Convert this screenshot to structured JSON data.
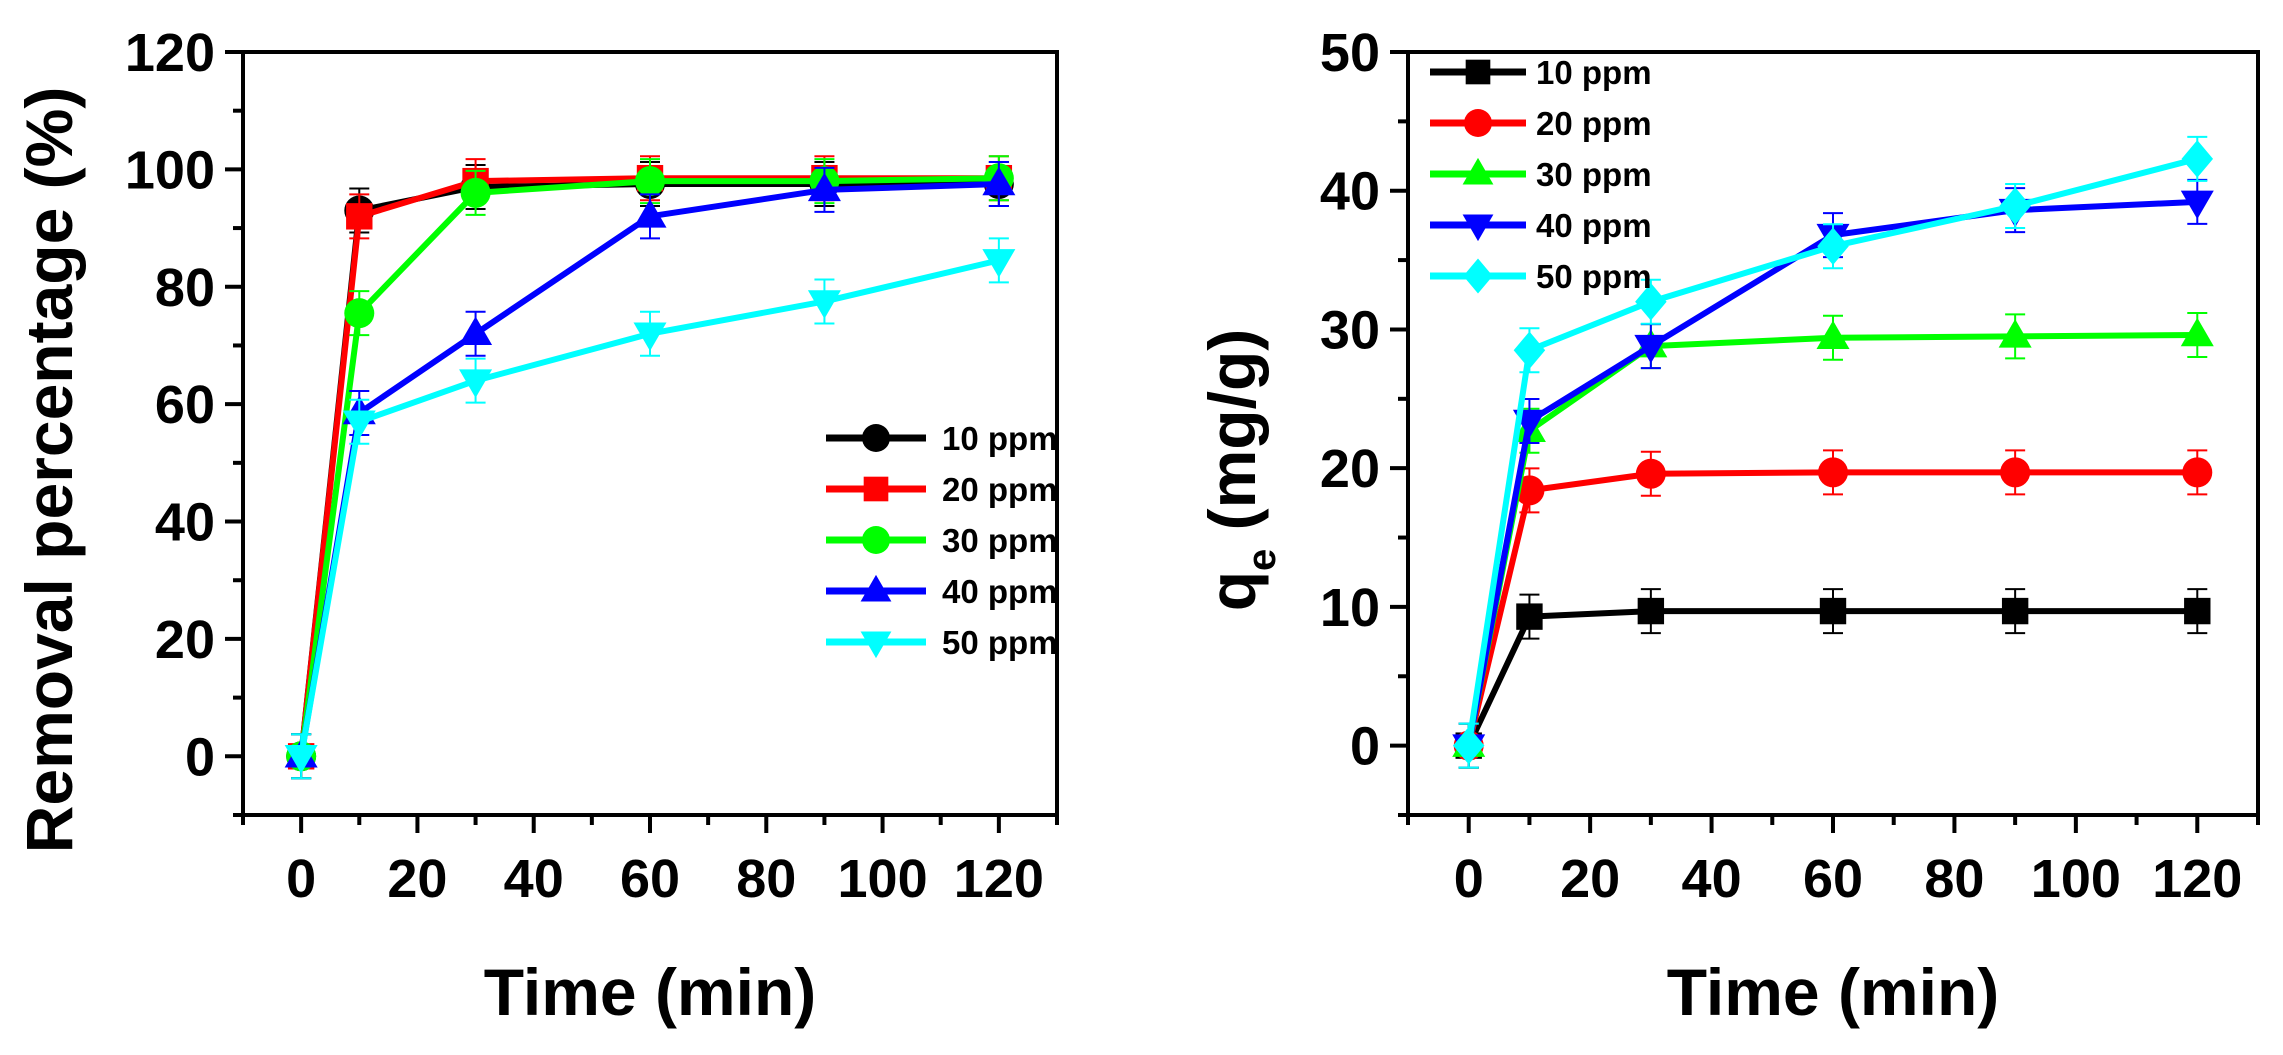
{
  "chart_data": [
    {
      "type": "line",
      "xlabel": "Time (min)",
      "ylabel": "Removal percentage (%)",
      "xlim": [
        -10,
        130
      ],
      "ylim": [
        -10,
        120
      ],
      "xticks": [
        0,
        20,
        40,
        60,
        80,
        100,
        120
      ],
      "yticks": [
        0,
        20,
        40,
        60,
        80,
        100,
        120
      ],
      "x": [
        0,
        10,
        30,
        60,
        90,
        120
      ],
      "legend_position": "center-right",
      "series": [
        {
          "name": "10 ppm",
          "color": "#000000",
          "marker": "circle",
          "values": [
            0,
            93,
            97,
            97.5,
            97.5,
            97.5
          ]
        },
        {
          "name": "20 ppm",
          "color": "#ff0000",
          "marker": "square",
          "values": [
            0,
            92,
            98,
            98.5,
            98.5,
            98.5
          ]
        },
        {
          "name": "30 ppm",
          "color": "#00ff00",
          "marker": "circle",
          "values": [
            0,
            75.5,
            96,
            98,
            98,
            98.5
          ]
        },
        {
          "name": "40 ppm",
          "color": "#0000ff",
          "marker": "triangle-up",
          "values": [
            0,
            58.5,
            72,
            92,
            96.5,
            97.5
          ]
        },
        {
          "name": "50 ppm",
          "color": "#00ffff",
          "marker": "triangle-down",
          "values": [
            0,
            57,
            64,
            72,
            77.5,
            84.5
          ]
        }
      ]
    },
    {
      "type": "line",
      "xlabel": "Time (min)",
      "ylabel": "q",
      "ylabel_sub": "e",
      "ylabel_tail": " (mg/g)",
      "xlim": [
        -10,
        130
      ],
      "ylim": [
        -5,
        50
      ],
      "xticks": [
        0,
        20,
        40,
        60,
        80,
        100,
        120
      ],
      "yticks": [
        0,
        10,
        20,
        30,
        40,
        50
      ],
      "x": [
        0,
        10,
        30,
        60,
        90,
        120
      ],
      "legend_position": "top-left",
      "series": [
        {
          "name": "10 ppm",
          "color": "#000000",
          "marker": "square",
          "values": [
            0,
            9.3,
            9.7,
            9.7,
            9.7,
            9.7
          ]
        },
        {
          "name": "20 ppm",
          "color": "#ff0000",
          "marker": "circle",
          "values": [
            0,
            18.4,
            19.6,
            19.7,
            19.7,
            19.7
          ]
        },
        {
          "name": "30 ppm",
          "color": "#00ff00",
          "marker": "triangle-up",
          "values": [
            0,
            22.7,
            28.8,
            29.4,
            29.5,
            29.6
          ]
        },
        {
          "name": "40 ppm",
          "color": "#0000ff",
          "marker": "triangle-down",
          "values": [
            0,
            23.4,
            28.8,
            36.8,
            38.6,
            39.2
          ]
        },
        {
          "name": "50 ppm",
          "color": "#00ffff",
          "marker": "diamond",
          "values": [
            0,
            28.5,
            32.0,
            36.0,
            38.9,
            42.3
          ]
        }
      ]
    }
  ]
}
